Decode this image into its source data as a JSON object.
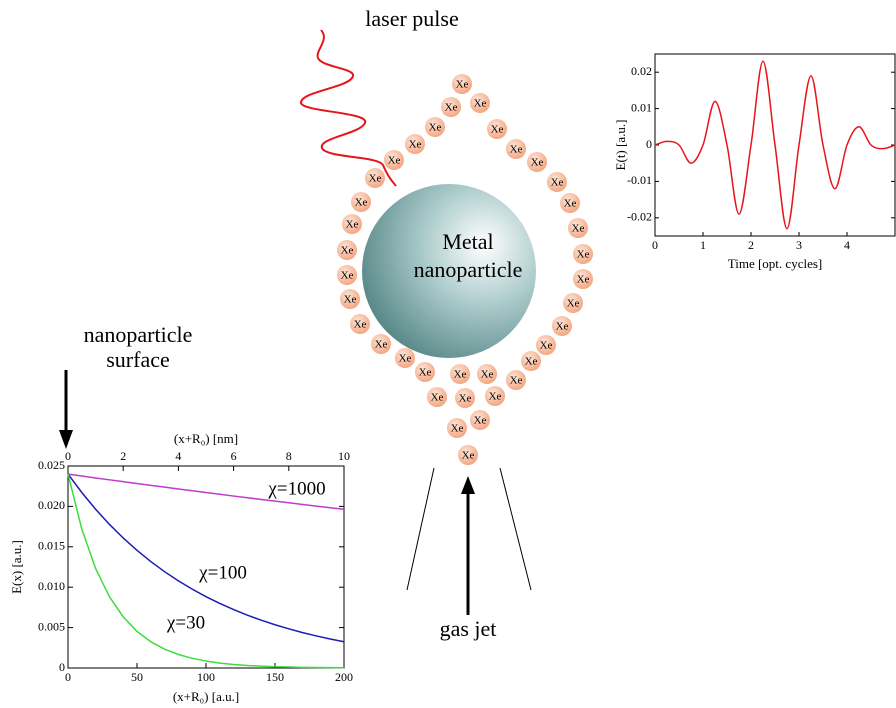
{
  "labels": {
    "laser_pulse": "laser pulse",
    "particle": [
      "Metal",
      "nanoparticle"
    ],
    "surface": [
      "nanoparticle",
      "surface"
    ],
    "gas_jet": "gas jet",
    "xe": "Xe"
  },
  "chart_data": [
    {
      "type": "line",
      "xlabel": "Time [opt. cycles]",
      "ylabel": "E(t) [a.u.]",
      "x": [
        0,
        0.25,
        0.5,
        0.75,
        1,
        1.25,
        1.5,
        1.75,
        2,
        2.25,
        2.5,
        2.75,
        3,
        3.25,
        3.5,
        3.75,
        4,
        4.25,
        4.5,
        4.75,
        5
      ],
      "values": [
        0,
        0.001,
        0,
        -0.005,
        0,
        0.012,
        0,
        -0.019,
        0,
        0.023,
        0,
        -0.023,
        0,
        0.019,
        0,
        -0.012,
        0,
        0.005,
        0,
        -0.001,
        0
      ],
      "color": "#e8141c",
      "xlim": [
        0,
        5
      ],
      "xticks": [
        0,
        1,
        2,
        3,
        4
      ],
      "ylim": [
        -0.025,
        0.025
      ],
      "yticks": [
        -0.02,
        -0.01,
        0,
        0.01,
        0.02
      ]
    },
    {
      "type": "line",
      "xlabel": "(x+R₀) [a.u.]",
      "x2label": "(x+R₀) [nm]",
      "ylabel": "E(x) [a.u.]",
      "x": [
        0,
        10,
        20,
        30,
        40,
        50,
        60,
        70,
        80,
        90,
        100,
        110,
        120,
        130,
        140,
        150,
        160,
        170,
        180,
        190,
        200
      ],
      "series": [
        {
          "name": "χ=1000",
          "color": "#c03cc8",
          "values": [
            0.024,
            0.02376,
            0.02352,
            0.02329,
            0.02306,
            0.02283,
            0.0226,
            0.02238,
            0.02215,
            0.02193,
            0.02172,
            0.0215,
            0.02128,
            0.02107,
            0.02086,
            0.02065,
            0.02045,
            0.02024,
            0.02004,
            0.01984,
            0.01965
          ]
        },
        {
          "name": "χ=100",
          "color": "#1c1cb4",
          "values": [
            0.024,
            0.02172,
            0.01965,
            0.01778,
            0.01609,
            0.01456,
            0.01317,
            0.01192,
            0.01078,
            0.00976,
            0.00883,
            0.00799,
            0.00723,
            0.00654,
            0.00592,
            0.00535,
            0.00485,
            0.00438,
            0.00397,
            0.00359,
            0.00325
          ]
        },
        {
          "name": "χ=30",
          "color": "#3cdc3c",
          "values": [
            0.024,
            0.0172,
            0.01232,
            0.00883,
            0.00633,
            0.00453,
            0.00325,
            0.00233,
            0.00167,
            0.0012,
            0.00086,
            0.00061,
            0.00044,
            0.00031,
            0.00023,
            0.00016,
            0.00012,
            8e-05,
            6e-05,
            4e-05,
            3e-05
          ]
        }
      ],
      "xlim": [
        0,
        200
      ],
      "xticks": [
        0,
        50,
        100,
        150,
        200
      ],
      "x2lim": [
        0,
        10
      ],
      "x2ticks": [
        0,
        2,
        4,
        6,
        8,
        10
      ],
      "ylim": [
        0,
        0.025
      ],
      "yticks": [
        0,
        0.005,
        {
          "value": 0.01,
          "label": "0.010"
        },
        0.015,
        {
          "value": 0.02,
          "label": "0.020"
        },
        0.025
      ]
    }
  ]
}
